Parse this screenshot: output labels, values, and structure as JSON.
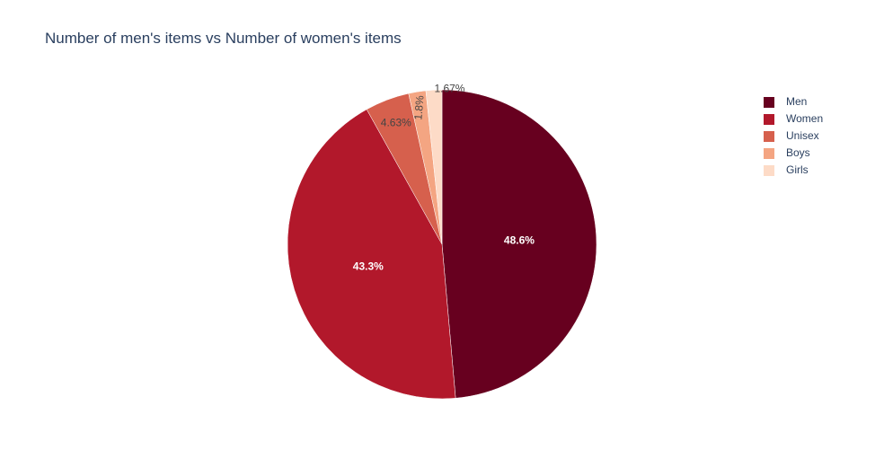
{
  "chart_data": {
    "type": "pie",
    "title": "Number of men's items vs Number of women's items",
    "slices": [
      {
        "label": "Men",
        "value": 48.6,
        "text": "48.6%",
        "color": "#67001f"
      },
      {
        "label": "Women",
        "value": 43.3,
        "text": "43.3%",
        "color": "#b2182b"
      },
      {
        "label": "Unisex",
        "value": 4.63,
        "text": "4.63%",
        "color": "#d6604d"
      },
      {
        "label": "Boys",
        "value": 1.8,
        "text": "1.8%",
        "color": "#f4a582"
      },
      {
        "label": "Girls",
        "value": 1.67,
        "text": "1.67%",
        "color": "#fddbc7"
      }
    ],
    "direction": "clockwise",
    "start": "top",
    "legend_position": "top-right"
  }
}
